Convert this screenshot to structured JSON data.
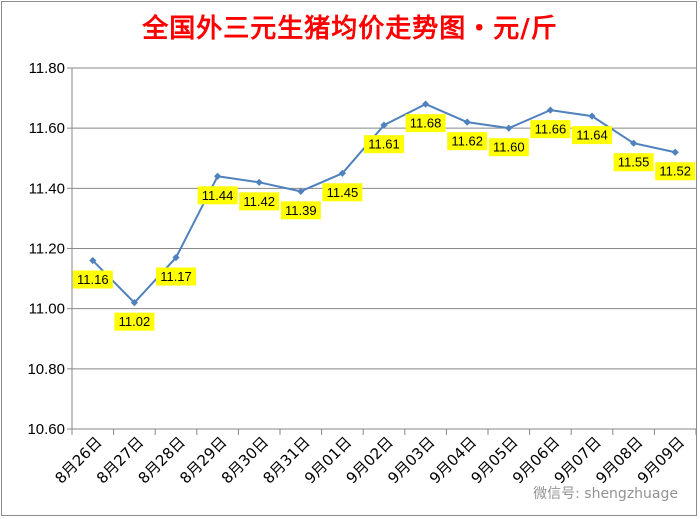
{
  "chart_data": {
    "type": "line",
    "title": "全国外三元生猪均价走势图・元/斤",
    "categories": [
      "8月26日",
      "8月27日",
      "8月28日",
      "8月29日",
      "8月30日",
      "8月31日",
      "9月01日",
      "9月02日",
      "9月03日",
      "9月04日",
      "9月05日",
      "9月06日",
      "9月07日",
      "9月08日",
      "9月09日"
    ],
    "series": [
      {
        "values": [
          11.16,
          11.02,
          11.17,
          11.44,
          11.42,
          11.39,
          11.45,
          11.61,
          11.68,
          11.62,
          11.6,
          11.66,
          11.64,
          11.55,
          11.52
        ]
      }
    ],
    "data_labels": [
      "11.16",
      "11.02",
      "11.17",
      "11.44",
      "11.42",
      "11.39",
      "11.45",
      "11.61",
      "11.68",
      "11.62",
      "11.60",
      "11.66",
      "11.64",
      "11.55",
      "11.52"
    ],
    "y_ticks": [
      "10.60",
      "10.80",
      "11.00",
      "11.20",
      "11.40",
      "11.60",
      "11.80"
    ],
    "ylim": [
      10.6,
      11.8
    ],
    "grid": true,
    "colors": {
      "line": "#4f81bd",
      "label_bg": "#ffff00",
      "title": "#ff0000"
    }
  },
  "watermark": "微信号: shengzhuage"
}
